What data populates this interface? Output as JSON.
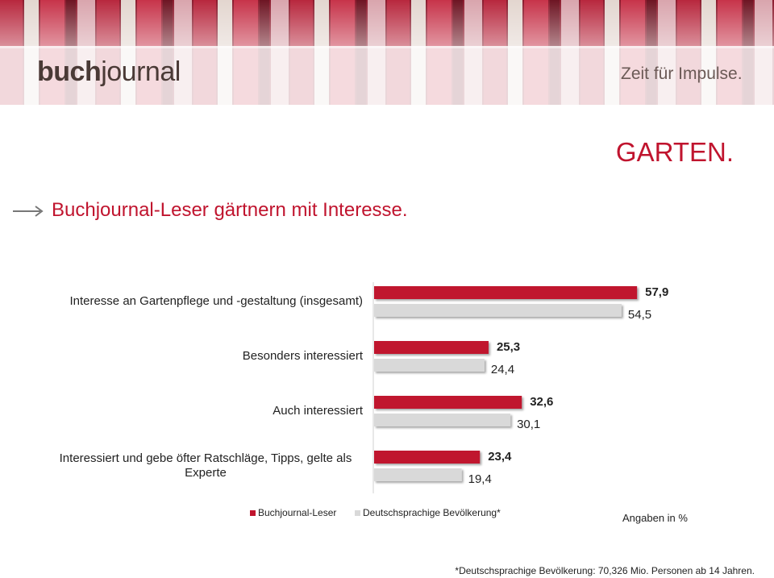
{
  "header": {
    "logo_bold": "buch",
    "logo_rest": "journal",
    "slogan": "Zeit für Impulse."
  },
  "page_title": "GARTEN.",
  "chart_data": {
    "type": "bar",
    "orientation": "horizontal",
    "title": "Buchjournal-Leser gärtnern mit Interesse.",
    "categories": [
      "Interesse an Gartenpflege und -gestaltung (insgesamt)",
      "Besonders interessiert",
      "Auch interessiert",
      "Interessiert und gebe öfter Ratschläge, Tipps, gelte als Experte"
    ],
    "series": [
      {
        "name": "Buchjournal-Leser",
        "color": "#c0142e",
        "values": [
          57.9,
          25.3,
          32.6,
          23.4
        ],
        "value_labels": [
          "57,9",
          "25,3",
          "32,6",
          "23,4"
        ]
      },
      {
        "name": "Deutschsprachige Bevölkerung*",
        "color": "#d9d9d9",
        "values": [
          54.5,
          24.4,
          30.1,
          19.4
        ],
        "value_labels": [
          "54,5",
          "24,4",
          "30,1",
          "19,4"
        ]
      }
    ],
    "note": "Angaben in %",
    "footnote": "*Deutschsprachige Bevölkerung: 70,326 Mio. Personen ab 14 Jahren."
  }
}
